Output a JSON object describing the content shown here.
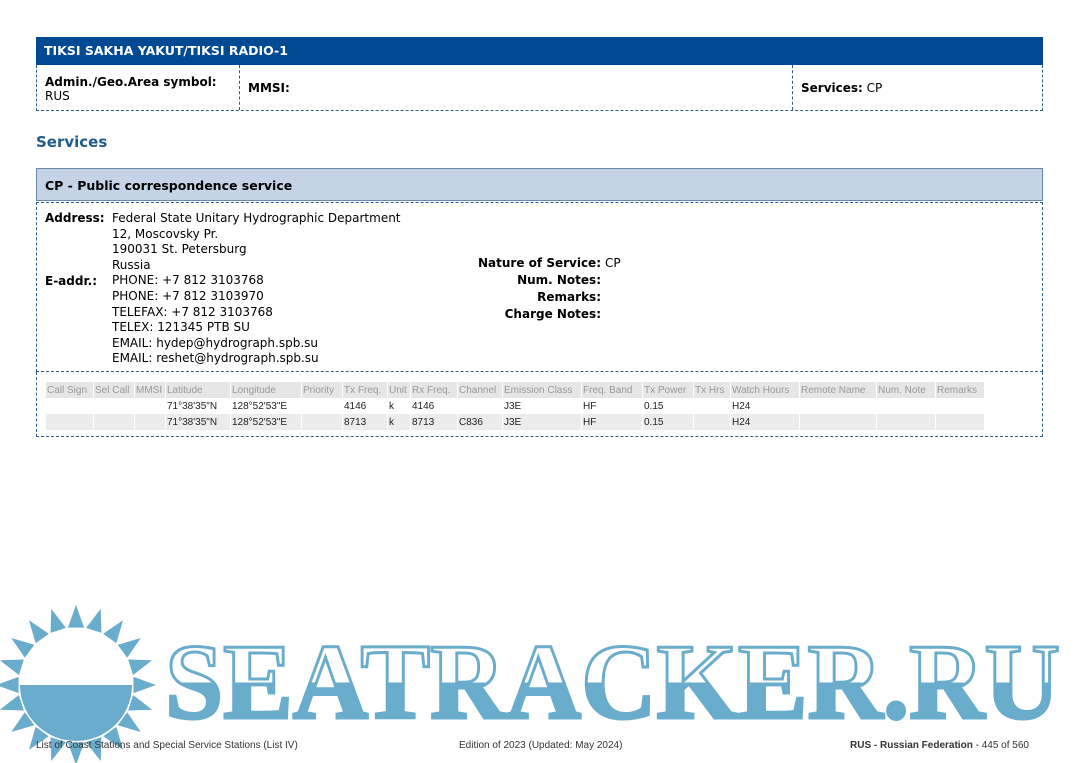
{
  "station": {
    "title": "TIKSI SAKHA YAKUT/TIKSI RADIO-1",
    "admin_label": "Admin./Geo.Area symbol:",
    "admin_value": "RUS",
    "mmsi_label": "MMSI:",
    "mmsi_value": "",
    "services_label": "Services:",
    "services_value": "CP"
  },
  "services_heading": "Services",
  "service": {
    "title": "CP - Public correspondence service",
    "address_label": "Address:",
    "address_lines": [
      "Federal State Unitary Hydrographic Department",
      "12, Moscovsky Pr.",
      "190031 St. Petersburg",
      "Russia"
    ],
    "eaddr_label": "E-addr.:",
    "eaddr_lines": [
      "PHONE: +7 812 3103768",
      "PHONE: +7 812 3103970",
      "TELEFAX: +7 812 3103768",
      "TELEX: 121345 PTB SU",
      "EMAIL: hydep@hydrograph.spb.su",
      "EMAIL: reshet@hydrograph.spb.su"
    ],
    "nature_label": "Nature of Service:",
    "nature_value": "CP",
    "num_notes_label": "Num. Notes:",
    "remarks_label": "Remarks:",
    "charge_notes_label": "Charge Notes:"
  },
  "table": {
    "columns": [
      "Call Sign",
      "Sel Call",
      "MMSI",
      "Latitude",
      "Longitude",
      "Priority",
      "Tx Freq.",
      "Unit",
      "Rx Freq.",
      "Channel",
      "Emission Class",
      "Freq. Band",
      "Tx Power",
      "Tx Hrs",
      "Watch Hours",
      "Remote Name",
      "Num. Note",
      "Remarks"
    ],
    "rows": [
      [
        "",
        "",
        "",
        "71°38'35\"N",
        "128°52'53\"E",
        "",
        "4146",
        "k",
        "4146",
        "",
        "J3E",
        "HF",
        "0.15",
        "",
        "H24",
        "",
        "",
        ""
      ],
      [
        "",
        "",
        "",
        "71°38'35\"N",
        "128°52'53\"E",
        "",
        "8713",
        "k",
        "8713",
        "C836",
        "J3E",
        "HF",
        "0.15",
        "",
        "H24",
        "",
        "",
        ""
      ]
    ]
  },
  "watermark": {
    "text": "SEATRACKER.RU",
    "color": "#6aaccc"
  },
  "footer": {
    "left": "List of Coast Stations and Special Service Stations (List IV)",
    "center": "Edition of 2023 (Updated: May 2024)",
    "right_bold": "RUS - Russian Federation",
    "right": " - 445 of 560"
  },
  "colors": {
    "header": "#004a94",
    "service_bar": "#c5d3e6",
    "heading": "#1f5b8c"
  }
}
